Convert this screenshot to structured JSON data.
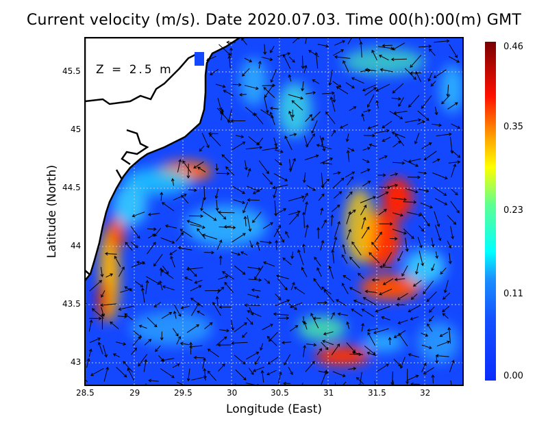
{
  "title": "Current velocity (m/s). Date 2020.07.03. Time 00(h):00(m) GMT",
  "depth_label": "Z = 2.5 m",
  "x_axis": {
    "label": "Longitude (East)",
    "ticks": [
      "28.5",
      "29",
      "29.5",
      "30",
      "30.5",
      "31",
      "31.5",
      "32"
    ]
  },
  "y_axis": {
    "label": "Latitude (North)",
    "ticks": [
      "45.5",
      "45",
      "44.5",
      "44",
      "43.5",
      "43"
    ]
  },
  "colorbar": {
    "ticks": [
      "0.46",
      "0.35",
      "0.23",
      "0.11",
      "0.00"
    ],
    "min": 0.0,
    "max": 0.46,
    "colors": [
      "#0a2cff",
      "#1e6bff",
      "#00c8ff",
      "#00ffff",
      "#60ff90",
      "#ffff00",
      "#ff9000",
      "#ff2000",
      "#a00000",
      "#780000"
    ]
  },
  "extent": {
    "lon": [
      28.5,
      32.4
    ],
    "lat": [
      42.81,
      45.79
    ]
  }
}
